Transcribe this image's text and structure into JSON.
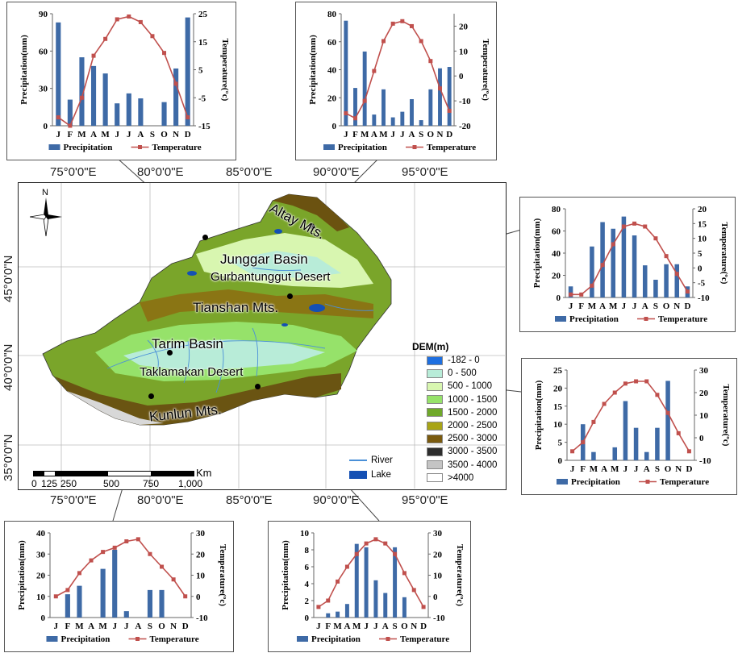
{
  "colors": {
    "precip_bar": "#3e6aa6",
    "temp_line": "#c0504d",
    "leader_line": "#444444"
  },
  "map": {
    "lon_labels": [
      "75°0'0\"E",
      "80°0'0\"E",
      "85°0'0\"E",
      "90°0'0\"E",
      "95°0'0\"E"
    ],
    "lat_labels": [
      "45°0'0\"N",
      "40°0'0\"N",
      "35°0'0\"N"
    ],
    "north_label": "N",
    "regions": {
      "altay": "Altay Mts.",
      "junggar": "Junggar Basin",
      "gurban": "Gurbantunggut Desert",
      "tianshan": "Tianshan Mts.",
      "tarim": "Tarim Basin",
      "taklamakan": "Taklamakan Desert",
      "kunlun": "Kunlun Mts."
    },
    "legend": {
      "title": "DEM(m)",
      "classes": [
        {
          "label": "-182 - 0",
          "color": "#1e6fe0"
        },
        {
          "label": "0 - 500",
          "color": "#b8ecd8"
        },
        {
          "label": "500  - 1000",
          "color": "#d8f6b0"
        },
        {
          "label": "1000 - 1500",
          "color": "#96e26a"
        },
        {
          "label": "1500 - 2000",
          "color": "#6fa82a"
        },
        {
          "label": "2000 - 2500",
          "color": "#a8a416"
        },
        {
          "label": "2500 - 3000",
          "color": "#7a5a0e"
        },
        {
          "label": "3000 - 3500",
          "color": "#2d2d2d"
        },
        {
          "label": "3500 - 4000",
          "color": "#c4c4c4"
        },
        {
          "label": ">4000",
          "color": "#ffffff"
        }
      ],
      "river_label": "River",
      "lake_label": "Lake",
      "river_color": "#4a90d8",
      "lake_color": "#1450b4"
    },
    "scale": {
      "unit": "Km",
      "ticks": [
        "0",
        "125",
        "250",
        "500",
        "750",
        "1,000"
      ]
    }
  },
  "chart_data": [
    {
      "type": "bar",
      "categories": [
        "J",
        "F",
        "M",
        "A",
        "M",
        "J",
        "J",
        "A",
        "S",
        "O",
        "N",
        "D"
      ],
      "series": [
        {
          "name": "Precipitation",
          "axis": "left",
          "values": [
            83,
            21,
            55,
            48,
            42,
            18,
            26,
            22,
            0,
            19,
            46,
            87
          ]
        },
        {
          "name": "Temperature",
          "axis": "right",
          "type": "line",
          "values": [
            -12,
            -15,
            -5,
            10,
            16,
            23,
            24,
            22,
            17,
            11,
            0,
            -12
          ]
        }
      ],
      "ylabel": "Precipitation(mm)",
      "ylim": [
        0,
        90
      ],
      "yticks": [
        0,
        30,
        60,
        90
      ],
      "y2label": "Temperature(°c)",
      "y2lim": [
        -15,
        25
      ],
      "y2ticks": [
        -15,
        -5,
        5,
        15,
        25
      ]
    },
    {
      "type": "bar",
      "categories": [
        "J",
        "F",
        "M",
        "A",
        "M",
        "J",
        "J",
        "A",
        "S",
        "O",
        "N",
        "D"
      ],
      "series": [
        {
          "name": "Precipitation",
          "axis": "left",
          "values": [
            75,
            27,
            53,
            8,
            26,
            6,
            10,
            19,
            4,
            26,
            41,
            42
          ]
        },
        {
          "name": "Temperature",
          "axis": "right",
          "type": "line",
          "values": [
            -15,
            -17,
            -10,
            2,
            14,
            21,
            22,
            20,
            14,
            6,
            -5,
            -14
          ]
        }
      ],
      "ylabel": "Precipitation(mm)",
      "ylim": [
        0,
        80
      ],
      "yticks": [
        0,
        20,
        40,
        60,
        80
      ],
      "y2label": "Temperature(ºc)",
      "y2lim": [
        -20,
        25
      ],
      "y2ticks": [
        -20,
        -10,
        0,
        10,
        20
      ]
    },
    {
      "type": "bar",
      "categories": [
        "J",
        "F",
        "M",
        "A",
        "M",
        "J",
        "J",
        "A",
        "S",
        "O",
        "N",
        "D"
      ],
      "series": [
        {
          "name": "Precipitation",
          "axis": "left",
          "values": [
            10,
            0,
            46,
            68,
            62,
            73,
            56,
            29,
            16,
            30,
            30,
            10
          ]
        },
        {
          "name": "Temperature",
          "axis": "right",
          "type": "line",
          "values": [
            -9,
            -9,
            -6,
            1,
            8,
            14,
            15,
            14,
            10,
            4,
            -2,
            -8
          ]
        }
      ],
      "ylabel": "Precipitation(mm)",
      "ylim": [
        0,
        80
      ],
      "yticks": [
        0,
        20,
        40,
        60,
        80
      ],
      "y2label": "Temperature(ºc)",
      "y2lim": [
        -10,
        20
      ],
      "y2ticks": [
        -10,
        -5,
        0,
        5,
        10,
        15,
        20
      ]
    },
    {
      "type": "bar",
      "categories": [
        "J",
        "F",
        "M",
        "A",
        "M",
        "J",
        "J",
        "A",
        "S",
        "O",
        "N",
        "D"
      ],
      "series": [
        {
          "name": "Precipitation",
          "axis": "left",
          "values": [
            0,
            10,
            2.3,
            0,
            3.6,
            16.4,
            9,
            2.3,
            9,
            22,
            0,
            0
          ]
        },
        {
          "name": "Temperature",
          "axis": "right",
          "type": "line",
          "values": [
            -6,
            -2,
            7,
            15,
            20,
            24,
            25,
            25,
            19,
            11,
            2,
            -6
          ]
        }
      ],
      "ylabel": "Precipitation(mm)",
      "ylim": [
        0,
        25
      ],
      "yticks": [
        0,
        5,
        10,
        15,
        20,
        25
      ],
      "y2label": "Temperature(ºc)",
      "y2lim": [
        -10,
        30
      ],
      "y2ticks": [
        -10,
        0,
        10,
        20,
        30
      ]
    },
    {
      "type": "bar",
      "categories": [
        "J",
        "F",
        "M",
        "A",
        "M",
        "J",
        "J",
        "A",
        "S",
        "O",
        "N",
        "D"
      ],
      "series": [
        {
          "name": "Precipitation",
          "axis": "left",
          "values": [
            0,
            11,
            15,
            0,
            23,
            32,
            3,
            0,
            13,
            13,
            0,
            0
          ]
        },
        {
          "name": "Temperature",
          "axis": "right",
          "type": "line",
          "values": [
            0,
            3,
            11,
            17,
            21,
            23,
            26,
            27,
            20,
            14,
            8,
            0
          ]
        }
      ],
      "ylabel": "Precipitation(mm)",
      "ylim": [
        0,
        40
      ],
      "yticks": [
        0,
        10,
        20,
        30,
        40
      ],
      "y2label": "Temperature(ºc)",
      "y2lim": [
        -10,
        30
      ],
      "y2ticks": [
        -10,
        0,
        10,
        20,
        30
      ]
    },
    {
      "type": "bar",
      "categories": [
        "J",
        "F",
        "M",
        "A",
        "M",
        "J",
        "J",
        "A",
        "S",
        "O",
        "N",
        "D"
      ],
      "series": [
        {
          "name": "Precipitation",
          "axis": "left",
          "values": [
            0,
            0.5,
            0.7,
            1.6,
            8.7,
            8.3,
            4.4,
            2.9,
            8.3,
            2.4,
            0,
            0
          ]
        },
        {
          "name": "Temperature",
          "axis": "right",
          "type": "line",
          "values": [
            -5,
            -2,
            7,
            14,
            20,
            25,
            27,
            25,
            20,
            11,
            3,
            -5
          ]
        }
      ],
      "ylabel": "Precipitation(mm)",
      "ylim": [
        0,
        10
      ],
      "yticks": [
        0,
        2,
        4,
        6,
        8,
        10
      ],
      "y2label": "Temperature(ºc)",
      "y2lim": [
        -10,
        30
      ],
      "y2ticks": [
        -10,
        0,
        10,
        20,
        30
      ]
    }
  ]
}
